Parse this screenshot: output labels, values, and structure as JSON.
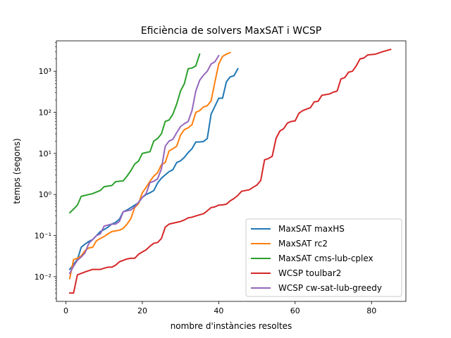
{
  "chart_data": {
    "type": "line",
    "title": "Eficiència de solvers MaxSAT i WCSP",
    "xlabel": "nombre d'instàncies resoltes",
    "ylabel": "temps (segons)",
    "xlim": [
      -2.5,
      89
    ],
    "ylim": [
      0.0025,
      5500
    ],
    "yscale": "log",
    "xticks": [
      0,
      20,
      40,
      60,
      80
    ],
    "xtick_labels": [
      "0",
      "20",
      "40",
      "60",
      "80"
    ],
    "yticks": [
      0.01,
      0.1,
      1,
      10,
      100,
      1000
    ],
    "ytick_labels": [
      "10⁻²",
      "10⁻¹",
      "10⁰",
      "10¹",
      "10²",
      "10³"
    ],
    "grid": false,
    "legend_position": "lower right",
    "series": [
      {
        "name": "MaxSAT maxHS",
        "color": "#1f77b4",
        "x": [
          1,
          2,
          3,
          4,
          5,
          6,
          7,
          8,
          9,
          10,
          11,
          12,
          13,
          14,
          15,
          16,
          17,
          18,
          19,
          20,
          21,
          22,
          23,
          24,
          25,
          26,
          27,
          28,
          29,
          30,
          31,
          32,
          33,
          34,
          35,
          36,
          37,
          38,
          39,
          40,
          41,
          42,
          43,
          44,
          45
        ],
        "y": [
          0.015,
          0.02,
          0.026,
          0.052,
          0.062,
          0.072,
          0.08,
          0.1,
          0.125,
          0.14,
          0.16,
          0.19,
          0.21,
          0.25,
          0.38,
          0.42,
          0.48,
          0.55,
          0.63,
          0.85,
          1.0,
          1.1,
          1.25,
          1.9,
          2.5,
          3.0,
          3.6,
          4.0,
          6.0,
          6.6,
          8.0,
          10.5,
          13.0,
          19.0,
          19.0,
          19.5,
          23.0,
          90.0,
          140.0,
          220.0,
          220.0,
          550.0,
          730.0,
          780.0,
          1150.0
        ]
      },
      {
        "name": "MaxSAT rc2",
        "color": "#ff7f0e",
        "x": [
          1,
          2,
          3,
          4,
          5,
          6,
          7,
          8,
          9,
          10,
          11,
          12,
          13,
          14,
          15,
          16,
          17,
          18,
          19,
          20,
          21,
          22,
          23,
          24,
          25,
          26,
          27,
          28,
          29,
          30,
          31,
          32,
          33,
          34,
          35,
          36,
          37,
          38,
          39,
          40,
          41,
          42,
          43
        ],
        "y": [
          0.009,
          0.026,
          0.028,
          0.032,
          0.043,
          0.05,
          0.052,
          0.075,
          0.085,
          0.095,
          0.11,
          0.125,
          0.13,
          0.135,
          0.15,
          0.19,
          0.26,
          0.48,
          0.6,
          1.1,
          1.5,
          2.1,
          2.8,
          3.4,
          5.3,
          6.0,
          11.5,
          13.0,
          15.0,
          28.0,
          38.0,
          42.0,
          50.0,
          100.0,
          110.0,
          135.0,
          145.0,
          190.0,
          550.0,
          1500.0,
          2300.0,
          2600.0,
          2850.0
        ]
      },
      {
        "name": "MaxSAT cms-lub-cplex",
        "color": "#2ca02c",
        "x": [
          1,
          2,
          3,
          4,
          5,
          6,
          7,
          8,
          9,
          10,
          11,
          12,
          13,
          14,
          15,
          16,
          17,
          18,
          19,
          20,
          21,
          22,
          23,
          24,
          25,
          26,
          27,
          28,
          29,
          30,
          31,
          32,
          33,
          34,
          35
        ],
        "y": [
          0.36,
          0.44,
          0.55,
          0.9,
          0.95,
          1.0,
          1.05,
          1.15,
          1.25,
          1.55,
          1.6,
          1.65,
          2.05,
          2.1,
          2.15,
          2.8,
          3.8,
          5.5,
          6.5,
          10.0,
          10.5,
          11.0,
          20.0,
          23.0,
          30.0,
          60.0,
          65.0,
          90.0,
          160.0,
          330.0,
          500.0,
          1150.0,
          1200.0,
          1350.0,
          2600.0
        ]
      },
      {
        "name": "WCSP toulbar2",
        "color": "#d62728",
        "x": [
          1,
          2,
          3,
          4,
          5,
          6,
          7,
          8,
          9,
          10,
          11,
          12,
          13,
          14,
          15,
          16,
          17,
          18,
          19,
          20,
          21,
          22,
          23,
          24,
          25,
          26,
          27,
          28,
          29,
          30,
          31,
          32,
          33,
          34,
          35,
          36,
          37,
          38,
          39,
          40,
          41,
          42,
          43,
          44,
          45,
          46,
          47,
          48,
          49,
          50,
          51,
          52,
          53,
          54,
          55,
          56,
          57,
          58,
          59,
          60,
          61,
          62,
          63,
          64,
          65,
          66,
          67,
          68,
          69,
          70,
          71,
          72,
          73,
          74,
          75,
          76,
          77,
          78,
          79,
          80,
          81,
          82,
          83,
          84,
          85
        ],
        "y": [
          0.004,
          0.004,
          0.011,
          0.012,
          0.013,
          0.014,
          0.015,
          0.015,
          0.015,
          0.016,
          0.017,
          0.017,
          0.019,
          0.023,
          0.025,
          0.027,
          0.028,
          0.028,
          0.035,
          0.04,
          0.045,
          0.055,
          0.065,
          0.068,
          0.085,
          0.16,
          0.19,
          0.2,
          0.21,
          0.22,
          0.24,
          0.27,
          0.28,
          0.3,
          0.32,
          0.34,
          0.4,
          0.48,
          0.5,
          0.55,
          0.56,
          0.58,
          0.7,
          0.8,
          0.95,
          1.2,
          1.25,
          1.3,
          1.5,
          1.7,
          2.2,
          7.0,
          7.5,
          8.5,
          23.0,
          35.0,
          40.0,
          55.0,
          60.0,
          62.0,
          95.0,
          110.0,
          120.0,
          130.0,
          180.0,
          185.0,
          260.0,
          270.0,
          280.0,
          310.0,
          330.0,
          650.0,
          700.0,
          950.0,
          1000.0,
          1350.0,
          2000.0,
          2100.0,
          2500.0,
          2550.0,
          2600.0,
          2800.0,
          3000.0,
          3200.0,
          3400.0
        ]
      },
      {
        "name": "WCSP cw-sat-lub-greedy",
        "color": "#9467bd",
        "x": [
          1,
          2,
          3,
          4,
          5,
          6,
          7,
          8,
          9,
          10,
          11,
          12,
          13,
          14,
          15,
          16,
          17,
          18,
          19,
          20,
          21,
          22,
          23,
          24,
          25,
          26,
          27,
          28,
          29,
          30,
          31,
          32,
          33,
          34,
          35,
          36,
          37,
          38,
          39,
          40
        ],
        "y": [
          0.012,
          0.018,
          0.025,
          0.03,
          0.038,
          0.065,
          0.08,
          0.1,
          0.11,
          0.17,
          0.18,
          0.19,
          0.19,
          0.22,
          0.38,
          0.4,
          0.42,
          0.5,
          0.65,
          0.85,
          1.05,
          1.95,
          2.1,
          2.4,
          4.2,
          15.0,
          20.0,
          22.0,
          32.0,
          45.0,
          53.0,
          60.0,
          110.0,
          330.0,
          600.0,
          800.0,
          1000.0,
          1500.0,
          1700.0,
          2400.0
        ]
      }
    ]
  }
}
